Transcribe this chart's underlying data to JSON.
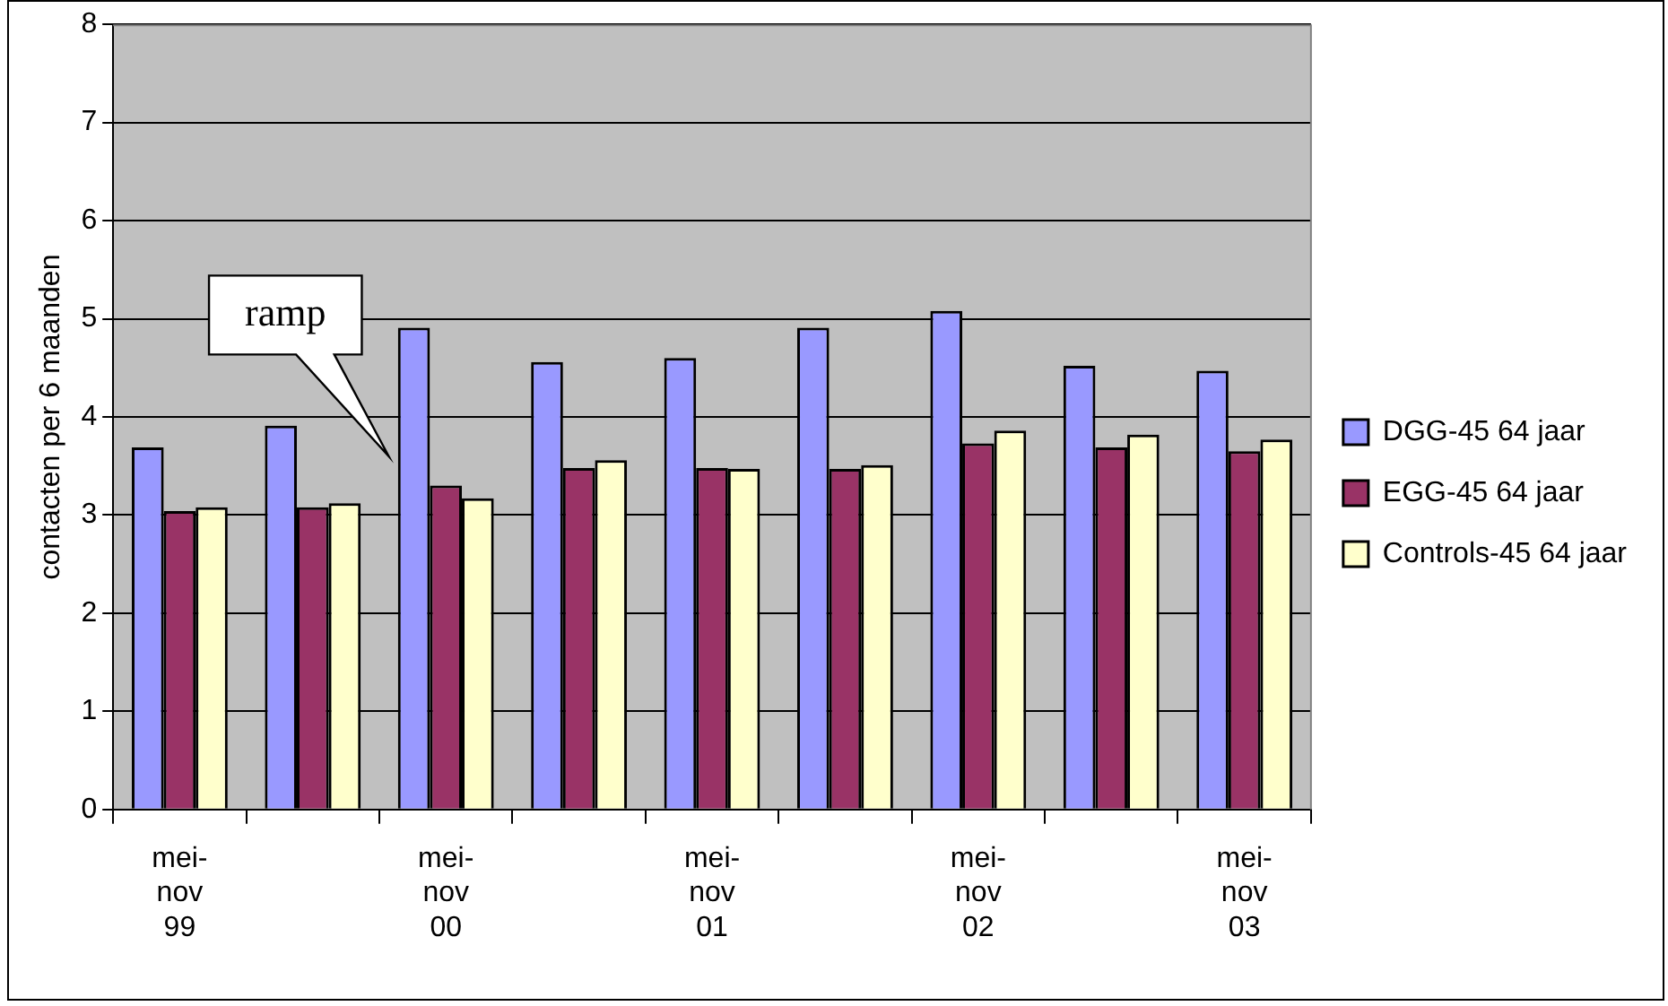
{
  "chart_data": {
    "type": "bar",
    "ylabel": "contacten per 6 maanden",
    "categories": [
      "mei-nov 99",
      null,
      "mei-nov 00",
      null,
      "mei-nov 01",
      null,
      "mei-nov 02",
      null,
      "mei-nov 03"
    ],
    "series": [
      {
        "name": "DGG-45 64 jaar",
        "color": "#9999ff",
        "values": [
          3.69,
          3.91,
          4.91,
          4.56,
          4.6,
          4.91,
          5.08,
          4.52,
          4.47
        ]
      },
      {
        "name": "EGG-45 64 jaar",
        "color": "#993366",
        "values": [
          3.04,
          3.08,
          3.3,
          3.48,
          3.48,
          3.47,
          3.73,
          3.69,
          3.65
        ]
      },
      {
        "name": "Controls-45 64 jaar",
        "color": "#ffffcc",
        "values": [
          3.08,
          3.12,
          3.17,
          3.56,
          3.47,
          3.51,
          3.86,
          3.82,
          3.77
        ]
      }
    ],
    "ylim": [
      0,
      8
    ],
    "yticks": [
      0,
      1,
      2,
      3,
      4,
      5,
      6,
      7,
      8
    ],
    "grid": "y",
    "legend": "right",
    "annotations": [
      "ramp"
    ]
  }
}
